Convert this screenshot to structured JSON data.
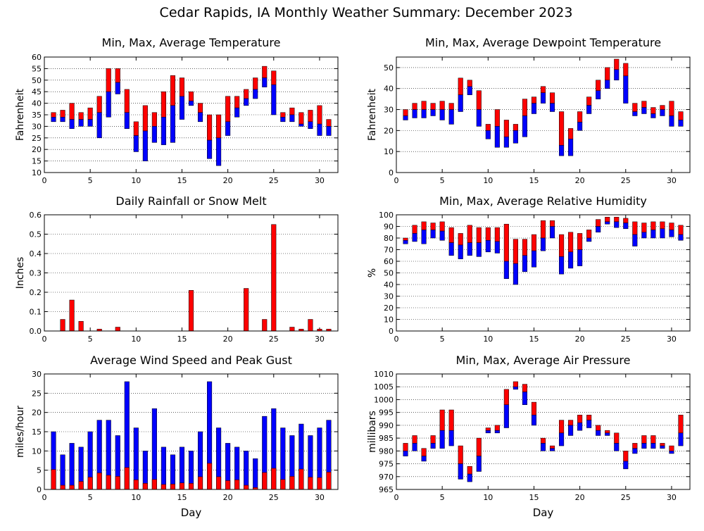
{
  "title": "Cedar Rapids, IA Monthly Weather Summary: December 2023",
  "colors": {
    "red": "#ff0000",
    "blue": "#0000ff",
    "grid": "#000000"
  },
  "chart_data": [
    {
      "id": "temp",
      "type": "bar",
      "subtype": "floating-range",
      "title": "Min, Max, Average Temperature",
      "xlabel": "",
      "ylabel": "Fahrenheit",
      "xlim": [
        0,
        32
      ],
      "ylim": [
        10,
        60
      ],
      "xticks": [
        0,
        5,
        10,
        15,
        20,
        25,
        30
      ],
      "yticks": [
        10,
        15,
        20,
        25,
        30,
        35,
        40,
        45,
        50,
        55,
        60
      ],
      "grid": true,
      "days": [
        1,
        2,
        3,
        4,
        5,
        6,
        7,
        8,
        9,
        10,
        11,
        12,
        13,
        14,
        15,
        16,
        17,
        18,
        19,
        20,
        21,
        22,
        23,
        24,
        25,
        26,
        27,
        28,
        29,
        30,
        31
      ],
      "min": [
        32,
        32,
        29,
        30,
        30,
        25,
        34,
        44,
        29,
        19,
        15,
        23,
        22,
        23,
        33,
        39,
        32,
        16,
        13,
        26,
        34,
        39,
        42,
        47,
        35,
        32,
        32,
        30,
        29,
        26,
        26
      ],
      "avg": [
        34,
        34,
        33,
        33,
        33,
        36,
        45,
        49,
        36,
        26,
        28,
        30,
        34,
        39,
        43,
        41,
        36,
        24,
        25,
        32,
        38,
        42,
        46,
        51,
        48,
        34,
        35,
        31,
        32,
        31,
        30
      ],
      "max": [
        36,
        37,
        40,
        36,
        38,
        43,
        55,
        55,
        46,
        32,
        39,
        36,
        45,
        52,
        51,
        45,
        40,
        35,
        35,
        43,
        43,
        46,
        51,
        56,
        54,
        36,
        38,
        36,
        37,
        39,
        33
      ]
    },
    {
      "id": "dewpoint",
      "type": "bar",
      "subtype": "floating-range",
      "title": "Min, Max, Average Dewpoint Temperature",
      "xlabel": "",
      "ylabel": "Fahrenheit",
      "xlim": [
        0,
        32
      ],
      "ylim": [
        0,
        55
      ],
      "xticks": [
        0,
        5,
        10,
        15,
        20,
        25,
        30
      ],
      "yticks": [
        0,
        10,
        20,
        30,
        40,
        50
      ],
      "grid": true,
      "days": [
        1,
        2,
        3,
        4,
        5,
        6,
        7,
        8,
        9,
        10,
        11,
        12,
        13,
        14,
        15,
        16,
        17,
        18,
        19,
        20,
        21,
        22,
        23,
        24,
        25,
        26,
        27,
        28,
        29,
        30,
        31
      ],
      "min": [
        25,
        26,
        26,
        27,
        25,
        23,
        29,
        37,
        22,
        16,
        12,
        12,
        14,
        17,
        28,
        33,
        29,
        8,
        8,
        20,
        28,
        35,
        40,
        44,
        33,
        27,
        28,
        26,
        27,
        22,
        22
      ],
      "avg": [
        27,
        30,
        30,
        30,
        30,
        30,
        37,
        41,
        30,
        20,
        22,
        17,
        20,
        27,
        33,
        38,
        33,
        13,
        16,
        24,
        32,
        39,
        44,
        49,
        46,
        29,
        31,
        28,
        30,
        27,
        25
      ],
      "max": [
        30,
        33,
        34,
        33,
        34,
        33,
        45,
        44,
        39,
        23,
        30,
        25,
        23,
        35,
        36,
        41,
        38,
        29,
        21,
        29,
        36,
        44,
        50,
        54,
        52,
        33,
        34,
        31,
        32,
        34,
        29
      ]
    },
    {
      "id": "rain",
      "type": "bar",
      "title": "Daily Rainfall or Snow Melt",
      "xlabel": "",
      "ylabel": "Inches",
      "xlim": [
        0,
        32
      ],
      "ylim": [
        0,
        0.6
      ],
      "xticks": [
        0,
        5,
        10,
        15,
        20,
        25,
        30
      ],
      "yticks": [
        0,
        0.1,
        0.2,
        0.3,
        0.4,
        0.5,
        0.6
      ],
      "ytick_labels": [
        "0.0",
        "0.1",
        "0.2",
        "0.3",
        "0.4",
        "0.5",
        "0.6"
      ],
      "grid": true,
      "days": [
        1,
        2,
        3,
        4,
        5,
        6,
        7,
        8,
        9,
        10,
        11,
        12,
        13,
        14,
        15,
        16,
        17,
        18,
        19,
        20,
        21,
        22,
        23,
        24,
        25,
        26,
        27,
        28,
        29,
        30,
        31
      ],
      "values": [
        0,
        0.06,
        0.16,
        0.05,
        0,
        0.01,
        0,
        0.02,
        0,
        0,
        0,
        0,
        0,
        0,
        0,
        0.21,
        0,
        0,
        0,
        0,
        0,
        0.22,
        0,
        0.06,
        0.55,
        0,
        0.02,
        0.01,
        0.06,
        0.01,
        0.01
      ]
    },
    {
      "id": "rh",
      "type": "bar",
      "subtype": "floating-range",
      "title": "Min, Max, Average Relative Humidity",
      "xlabel": "",
      "ylabel": "%",
      "xlim": [
        0,
        32
      ],
      "ylim": [
        0,
        100
      ],
      "xticks": [
        0,
        5,
        10,
        15,
        20,
        25,
        30
      ],
      "yticks": [
        0,
        10,
        20,
        30,
        40,
        50,
        60,
        70,
        80,
        90,
        100
      ],
      "grid": true,
      "days": [
        1,
        2,
        3,
        4,
        5,
        6,
        7,
        8,
        9,
        10,
        11,
        12,
        13,
        14,
        15,
        16,
        17,
        18,
        19,
        20,
        21,
        22,
        23,
        24,
        25,
        26,
        27,
        28,
        29,
        30,
        31
      ],
      "min": [
        75,
        77,
        75,
        80,
        78,
        65,
        62,
        65,
        64,
        68,
        67,
        45,
        40,
        51,
        55,
        69,
        80,
        49,
        54,
        56,
        77,
        85,
        92,
        89,
        88,
        73,
        80,
        80,
        80,
        81,
        78
      ],
      "avg": [
        78,
        84,
        87,
        87,
        86,
        76,
        74,
        76,
        76,
        78,
        77,
        60,
        58,
        65,
        69,
        80,
        90,
        64,
        68,
        70,
        80,
        90,
        94,
        94,
        93,
        83,
        85,
        87,
        88,
        87,
        83
      ],
      "max": [
        80,
        91,
        94,
        93,
        94,
        89,
        84,
        91,
        89,
        89,
        89,
        92,
        79,
        79,
        83,
        95,
        95,
        83,
        85,
        84,
        87,
        96,
        98,
        98,
        97,
        94,
        93,
        94,
        94,
        93,
        91
      ]
    },
    {
      "id": "wind",
      "type": "bar",
      "title": "Average Wind Speed and Peak Gust",
      "xlabel": "Day",
      "ylabel": "miles/hour",
      "xlim": [
        0,
        32
      ],
      "ylim": [
        0,
        30
      ],
      "xticks": [
        0,
        5,
        10,
        15,
        20,
        25,
        30
      ],
      "yticks": [
        0,
        5,
        10,
        15,
        20,
        25,
        30
      ],
      "grid": true,
      "days": [
        1,
        2,
        3,
        4,
        5,
        6,
        7,
        8,
        9,
        10,
        11,
        12,
        13,
        14,
        15,
        16,
        17,
        18,
        19,
        20,
        21,
        22,
        23,
        24,
        25,
        26,
        27,
        28,
        29,
        30,
        31
      ],
      "series": [
        {
          "name": "",
          "color": "blue",
          "values": [
            15,
            9,
            12,
            11,
            15,
            18,
            18,
            14,
            28,
            16,
            10,
            21,
            11,
            9,
            11,
            10,
            15,
            28,
            16,
            12,
            11,
            10,
            8,
            19,
            21,
            16,
            14,
            17,
            14,
            16,
            18
          ]
        },
        {
          "name": "",
          "color": "red",
          "values": [
            5.2,
            1.1,
            1.1,
            2.1,
            3.2,
            4.3,
            3.7,
            3.4,
            5.7,
            2.5,
            1.6,
            2.6,
            1.3,
            1.4,
            1.7,
            1.6,
            3.3,
            6.8,
            3.3,
            2.3,
            2.5,
            1.1,
            0.5,
            4.4,
            5.5,
            2.6,
            3.4,
            5.3,
            3.2,
            3.1,
            4.5
          ]
        }
      ]
    },
    {
      "id": "pressure",
      "type": "bar",
      "subtype": "floating-range",
      "title": "Min, Max, Average Air Pressure",
      "xlabel": "Day",
      "ylabel": "millibars",
      "xlim": [
        0,
        32
      ],
      "ylim": [
        965,
        1010
      ],
      "xticks": [
        0,
        5,
        10,
        15,
        20,
        25,
        30
      ],
      "yticks": [
        965,
        970,
        975,
        980,
        985,
        990,
        995,
        1000,
        1005,
        1010
      ],
      "grid": true,
      "days": [
        1,
        2,
        3,
        4,
        5,
        6,
        7,
        8,
        9,
        10,
        11,
        12,
        13,
        14,
        15,
        16,
        17,
        18,
        19,
        20,
        21,
        22,
        23,
        24,
        25,
        26,
        27,
        28,
        29,
        30,
        31
      ],
      "min": [
        978,
        980,
        976,
        981,
        981,
        982,
        969,
        968,
        972,
        987,
        987,
        989,
        1004,
        998,
        990,
        980,
        980,
        982,
        986,
        988,
        989,
        986,
        986,
        980,
        973,
        979,
        981,
        981,
        981,
        979,
        982
      ],
      "avg": [
        980,
        983,
        978,
        983,
        988,
        988,
        975,
        971,
        978,
        988,
        988,
        998,
        1005,
        1003,
        994,
        983,
        981,
        987,
        990,
        991,
        992,
        988,
        987,
        983,
        976,
        981,
        983,
        983,
        982,
        980,
        987
      ],
      "max": [
        983,
        986,
        981,
        986,
        996,
        996,
        982,
        974,
        985,
        989,
        990,
        1004,
        1007,
        1006,
        999,
        985,
        982,
        992,
        992,
        994,
        994,
        990,
        988,
        987,
        980,
        983,
        986,
        986,
        983,
        982,
        994
      ]
    }
  ]
}
